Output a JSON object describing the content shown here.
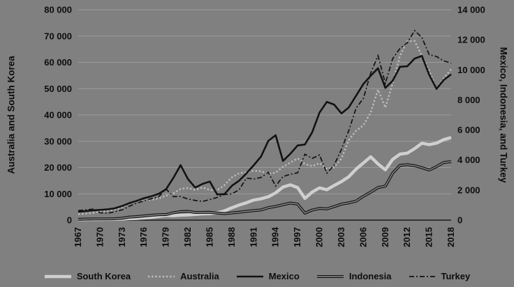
{
  "chart_data": {
    "type": "line",
    "title": "",
    "ylabel_left": "Australia and South Korea",
    "ylabel_right": "Mexico, Indonesia, and Turkey",
    "y_left": {
      "min": 0,
      "max": 80000,
      "step": 10000
    },
    "y_right": {
      "min": 0,
      "max": 14000,
      "step": 2000
    },
    "grid": true,
    "legend_position": "bottom",
    "x": [
      1967,
      1968,
      1969,
      1970,
      1971,
      1972,
      1973,
      1974,
      1975,
      1976,
      1977,
      1978,
      1979,
      1980,
      1981,
      1982,
      1983,
      1984,
      1985,
      1986,
      1987,
      1988,
      1989,
      1990,
      1991,
      1992,
      1993,
      1994,
      1995,
      1996,
      1997,
      1998,
      1999,
      2000,
      2001,
      2002,
      2003,
      2004,
      2005,
      2006,
      2007,
      2008,
      2009,
      2010,
      2011,
      2012,
      2013,
      2014,
      2015,
      2016,
      2017,
      2018
    ],
    "x_ticks": [
      1967,
      1970,
      1973,
      1976,
      1979,
      1982,
      1985,
      1988,
      1991,
      1994,
      1997,
      2000,
      2003,
      2006,
      2009,
      2012,
      2015,
      2018
    ],
    "series": [
      {
        "name": "South Korea",
        "axis": "left",
        "style": "thick-solid-lightgray",
        "values": [
          161,
          198,
          243,
          279,
          301,
          324,
          406,
          563,
          615,
          834,
          1056,
          1406,
          1773,
          1704,
          1870,
          1977,
          2181,
          2391,
          2457,
          2803,
          3511,
          4686,
          5737,
          6610,
          7637,
          8126,
          8885,
          10385,
          12565,
          13403,
          12398,
          8282,
          10672,
          12257,
          11561,
          13165,
          14673,
          16496,
          19403,
          21743,
          24086,
          21350,
          19143,
          23087,
          25096,
          25467,
          27183,
          29250,
          28732,
          29289,
          30617,
          31423
        ]
      },
      {
        "name": "Australia",
        "axis": "left",
        "style": "dotted-gray",
        "values": [
          2277,
          2469,
          2715,
          3305,
          3495,
          3945,
          4764,
          6473,
          6993,
          7475,
          7762,
          8240,
          9282,
          10194,
          11834,
          12190,
          11519,
          12431,
          11437,
          11366,
          13290,
          16240,
          17792,
          18211,
          18820,
          18570,
          17634,
          18046,
          20311,
          21861,
          23468,
          21318,
          20533,
          21679,
          19491,
          20082,
          23447,
          30431,
          33999,
          36045,
          40960,
          49601,
          42772,
          52022,
          62518,
          68012,
          68150,
          62511,
          56756,
          49971,
          54028,
          57354
        ]
      },
      {
        "name": "Mexico",
        "axis": "right",
        "style": "solid-black",
        "values": [
          557,
          601,
          652,
          682,
          717,
          786,
          937,
          1135,
          1280,
          1461,
          1590,
          1750,
          2050,
          2800,
          3660,
          2740,
          2170,
          2410,
          2570,
          1710,
          1730,
          2280,
          2620,
          3110,
          3650,
          4230,
          5280,
          5650,
          3940,
          4410,
          4970,
          5030,
          5850,
          7160,
          7870,
          7690,
          7100,
          7500,
          8280,
          9060,
          9610,
          10110,
          8800,
          9270,
          10200,
          10240,
          10750,
          10930,
          9670,
          8740,
          9330,
          9700
        ]
      },
      {
        "name": "Indonesia",
        "axis": "right",
        "style": "double-black",
        "values": [
          54,
          69,
          75,
          80,
          82,
          93,
          127,
          202,
          233,
          278,
          326,
          359,
          370,
          491,
          566,
          583,
          511,
          514,
          519,
          475,
          433,
          482,
          525,
          585,
          632,
          681,
          828,
          912,
          1026,
          1137,
          1064,
          464,
          671,
          780,
          748,
          900,
          1066,
          1150,
          1263,
          1590,
          1860,
          2167,
          2262,
          3122,
          3643,
          3694,
          3624,
          3492,
          3332,
          3563,
          3837,
          3894
        ]
      },
      {
        "name": "Turkey",
        "axis": "right",
        "style": "dashdot-black",
        "values": [
          634,
          682,
          731,
          489,
          455,
          558,
          686,
          928,
          1136,
          1276,
          1427,
          1550,
          2079,
          1564,
          1579,
          1402,
          1310,
          1246,
          1368,
          1510,
          1705,
          1745,
          2021,
          2794,
          2735,
          2842,
          3180,
          2270,
          2898,
          3053,
          3144,
          4390,
          4108,
          4337,
          3120,
          3660,
          4718,
          5961,
          7456,
          8102,
          9791,
          10941,
          9103,
          10742,
          11420,
          11795,
          12614,
          12158,
          11006,
          10891,
          10589,
          10454
        ]
      }
    ],
    "colors": {
      "background": "#808080",
      "grid": "#9b9b9b",
      "axis": "#1a1a1a",
      "black": "#121212",
      "lightgray": "#cfcfcf",
      "midgray": "#bdbdbd",
      "text": "#0d0d0d"
    }
  }
}
